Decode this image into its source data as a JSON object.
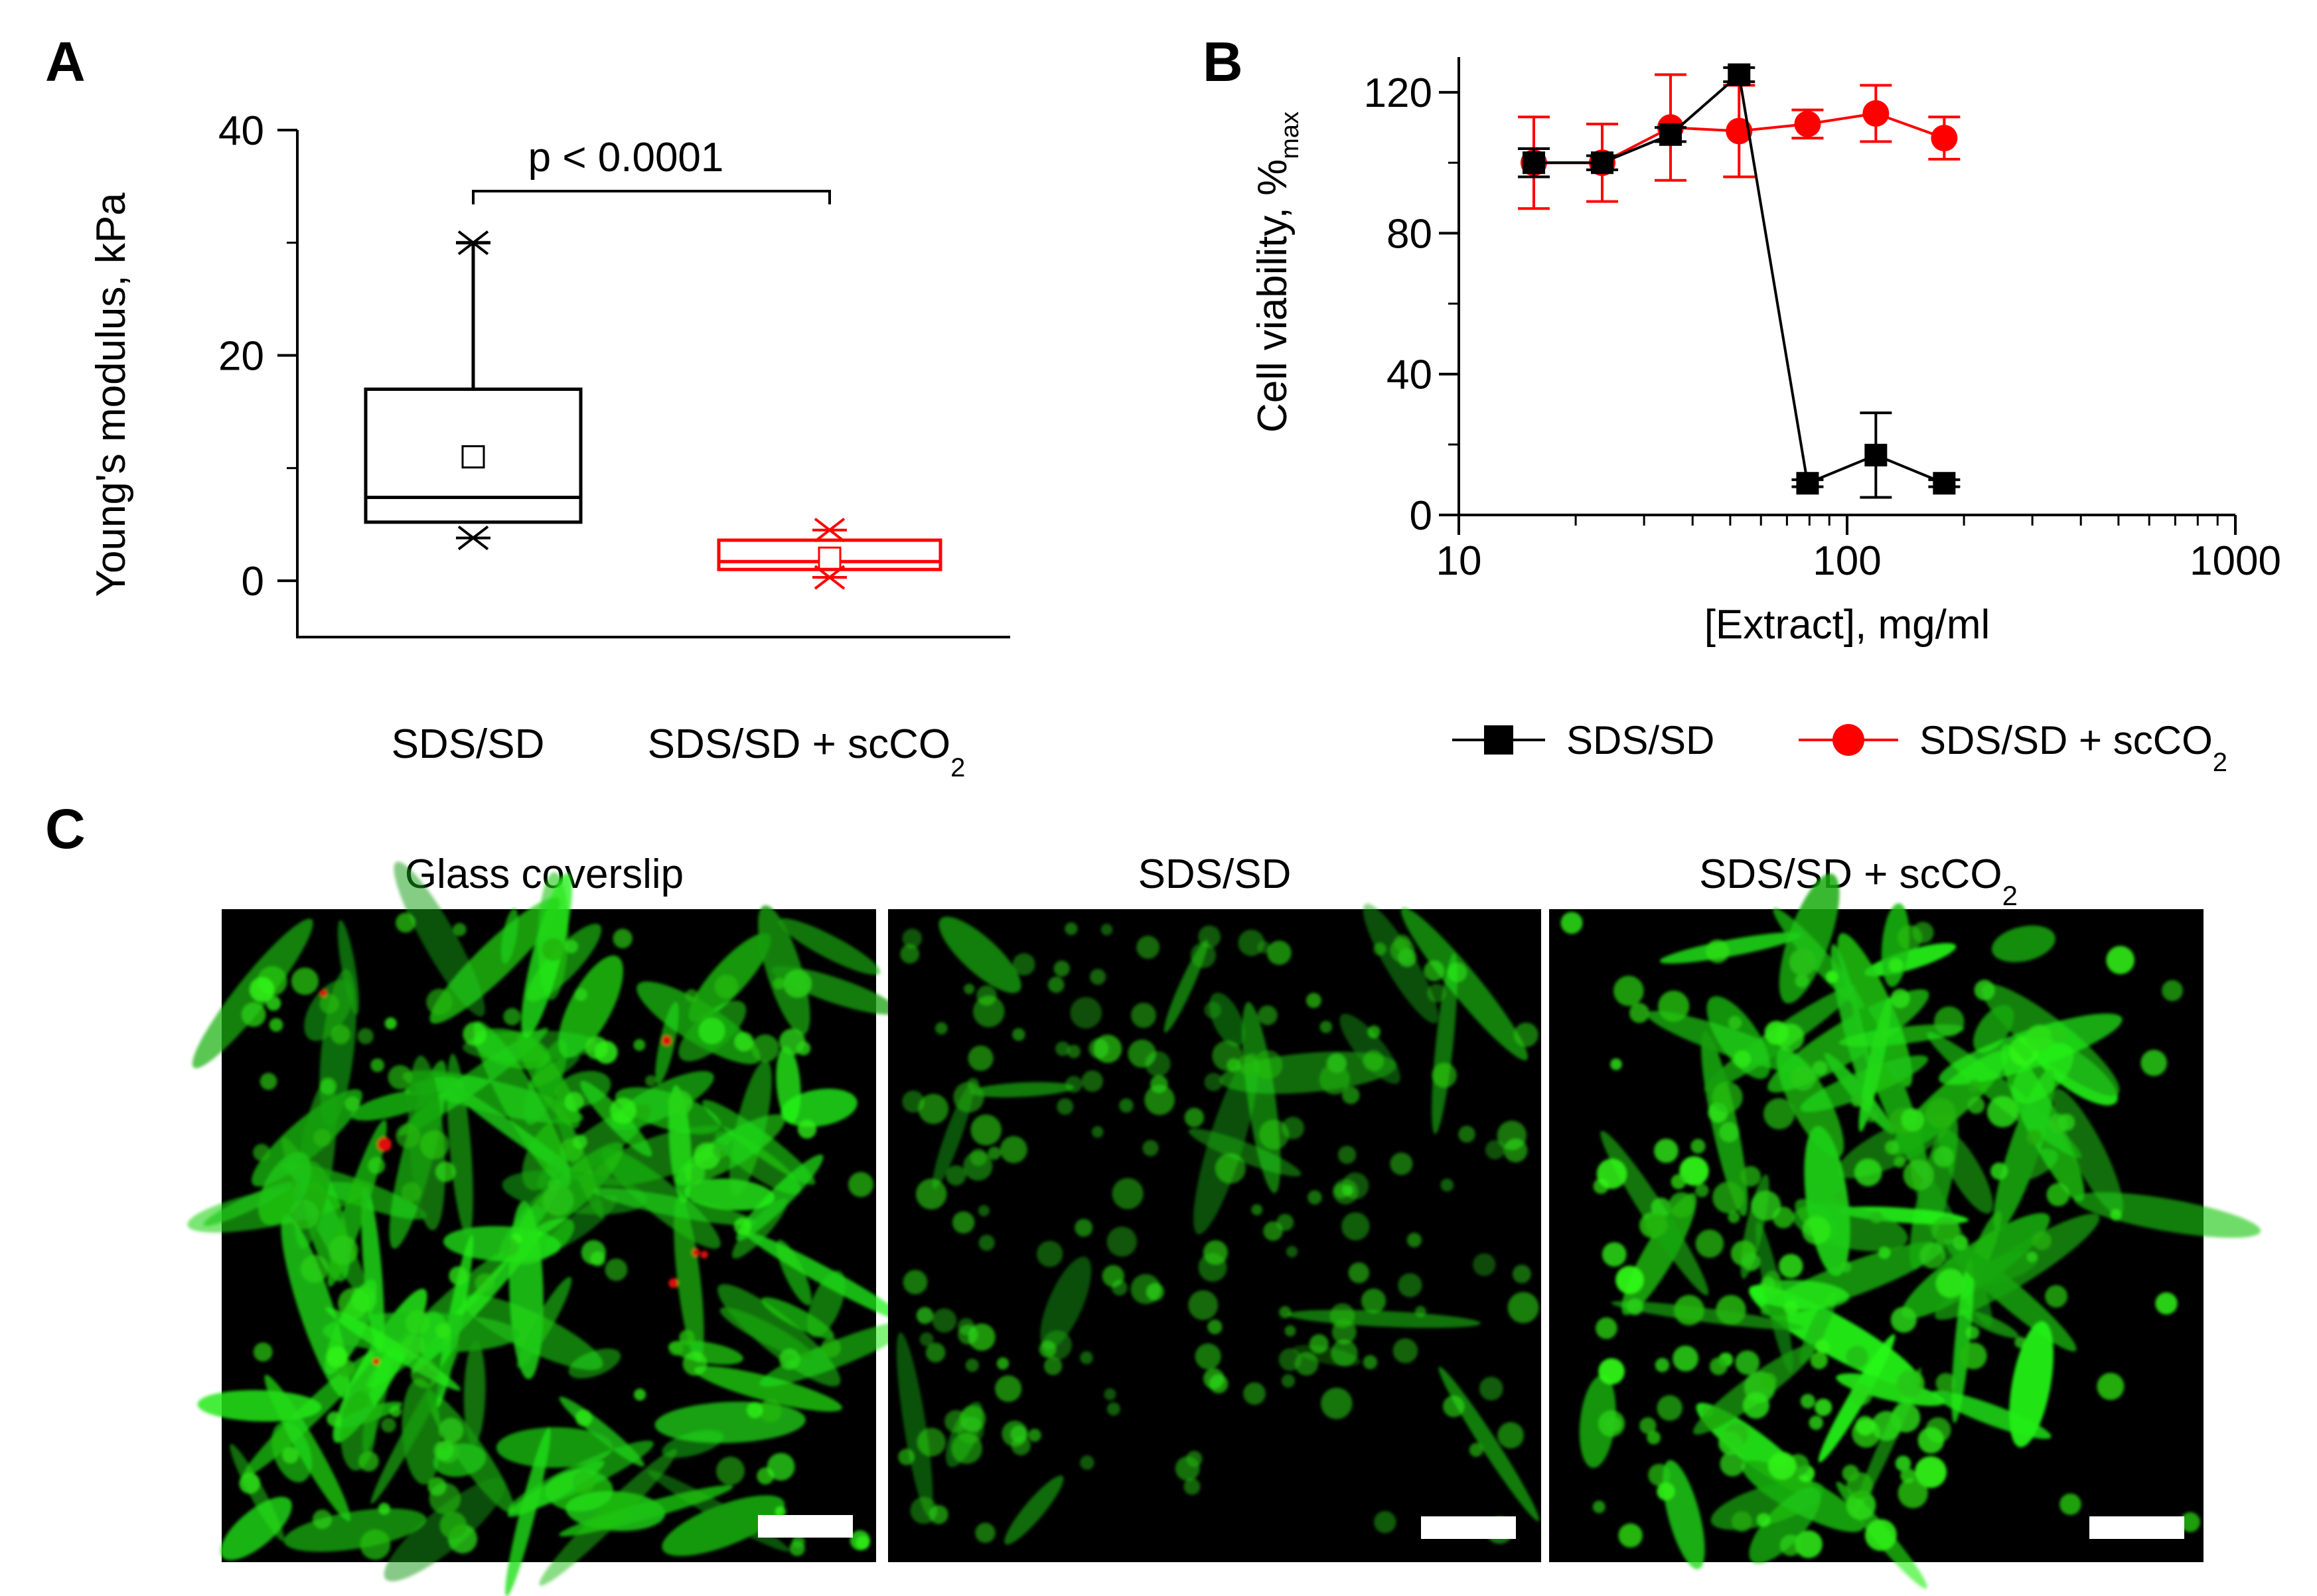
{
  "panels": {
    "A": "A",
    "B": "B",
    "C": "C"
  },
  "chart_data": [
    {
      "type": "box",
      "panel": "A",
      "ylabel": "Young's modulus, kPa",
      "yticks": [
        0,
        20,
        40
      ],
      "ylim": [
        -5,
        40
      ],
      "categories": [
        "SDS/SD",
        "SDS/SD + scCO"
      ],
      "category_subscripts": [
        "",
        "2"
      ],
      "boxes": [
        {
          "q1": 5.2,
          "median": 7.4,
          "q3": 17,
          "mean": 11,
          "whisker_low": 5.2,
          "whisker_high": 30,
          "min": 3.8,
          "max": 30,
          "color": "#000000"
        },
        {
          "q1": 1.0,
          "median": 1.7,
          "q3": 3.6,
          "mean": 2.0,
          "whisker_low": 1.0,
          "whisker_high": 3.6,
          "min": 0.3,
          "max": 4.5,
          "color": "#ff0000"
        }
      ],
      "annotation": "p < 0.0001"
    },
    {
      "type": "line",
      "panel": "B",
      "ylabel": "Cell viability, %",
      "ylabel_subscript": "max",
      "xlabel": "[Extract], mg/ml",
      "xscale": "log",
      "xlim": [
        10,
        1000
      ],
      "ylim": [
        0,
        130
      ],
      "xticks": [
        10,
        100,
        1000
      ],
      "yticks": [
        0,
        40,
        80,
        120
      ],
      "legend_position": "below",
      "series": [
        {
          "name": "SDS/SD",
          "name_subscript": "",
          "color": "#000000",
          "marker": "square",
          "x": [
            15.6,
            23.4,
            35.1,
            52.7,
            79.1,
            118.6,
            177.9
          ],
          "y": [
            100,
            100,
            108,
            125,
            9,
            17,
            9
          ],
          "err": [
            4,
            2,
            2,
            2,
            1,
            12,
            1
          ]
        },
        {
          "name": "SDS/SD + scCO",
          "name_subscript": "2",
          "color": "#ff0000",
          "marker": "circle",
          "x": [
            15.6,
            23.4,
            35.1,
            52.7,
            79.1,
            118.6,
            177.9
          ],
          "y": [
            100,
            100,
            110,
            109,
            111,
            114,
            107
          ],
          "err": [
            13,
            11,
            15,
            13,
            4,
            8,
            6
          ]
        }
      ]
    }
  ],
  "micrographs": [
    {
      "title": "Glass coverslip",
      "subscript": ""
    },
    {
      "title": "SDS/SD",
      "subscript": ""
    },
    {
      "title": "SDS/SD + scCO",
      "subscript": "2"
    }
  ]
}
